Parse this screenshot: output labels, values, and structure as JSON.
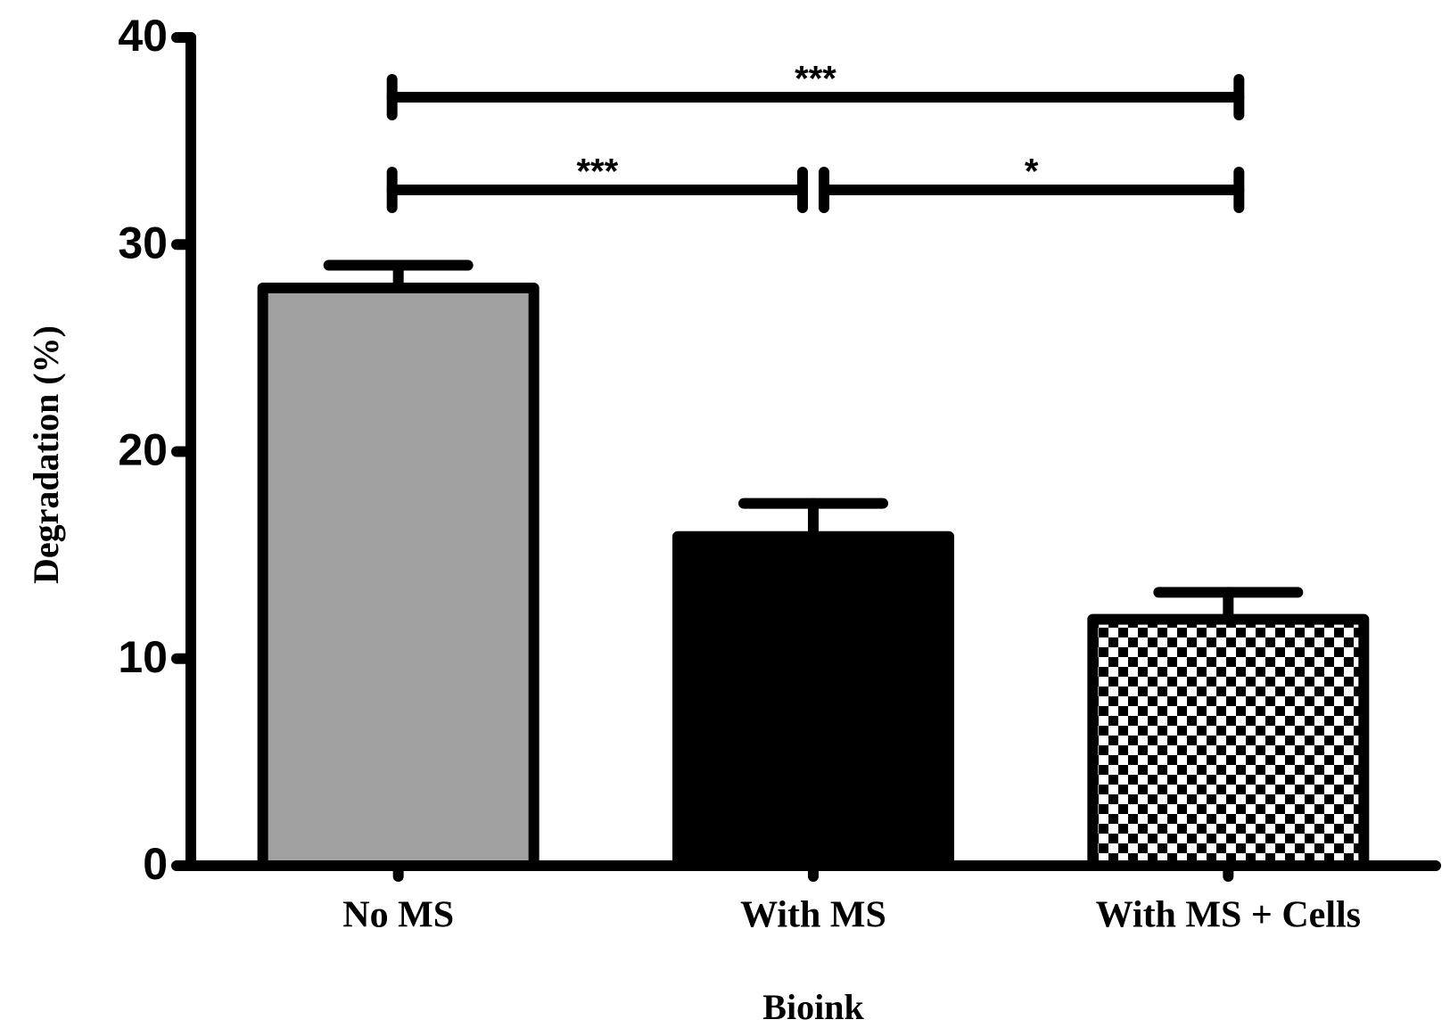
{
  "chart_data": {
    "type": "bar",
    "y_label": "Degradation (%)",
    "x_label": "Bioink",
    "categories": [
      "No MS",
      "With MS",
      "With MS + Cells"
    ],
    "values": [
      27.9,
      15.9,
      11.9
    ],
    "errors": [
      1.1,
      1.6,
      1.3
    ],
    "colors": [
      "#a0a0a0",
      "#000000",
      "checker"
    ],
    "ylim": [
      0,
      40
    ],
    "yticks": [
      0,
      10,
      20,
      30,
      40
    ],
    "annotations": [
      {
        "label": "***",
        "from": "No MS",
        "to": "With MS + Cells"
      },
      {
        "label": "***",
        "from": "No MS",
        "to": "With MS"
      },
      {
        "label": "*",
        "from": "With MS",
        "to": "With MS + Cells"
      }
    ]
  }
}
